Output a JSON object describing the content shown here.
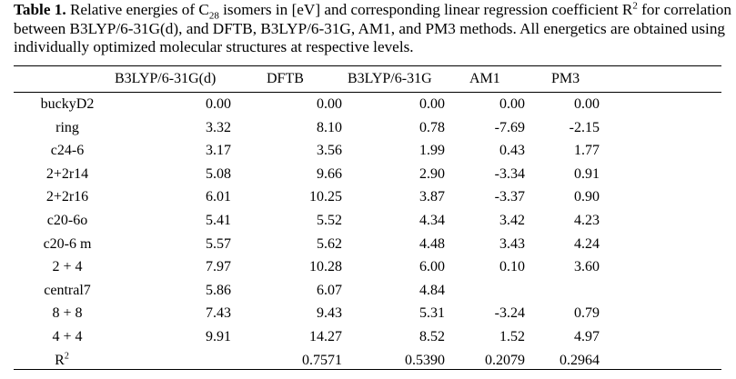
{
  "caption": {
    "label": "Table 1.",
    "text_a": " Relative energies of C",
    "sub": "28",
    "text_b": " isomers in [eV] and corresponding linear regression coefficient R",
    "sup": "2",
    "text_c": " for correlation between B3LYP/6-31G(d), and DFTB, B3LYP/6-31G, AM1, and PM3 methods. All energetics are obtained using individually optimized molecular structures at respective levels."
  },
  "columns": [
    "B3LYP/6-31G(d)",
    "DFTB",
    "B3LYP/6-31G",
    "AM1",
    "PM3"
  ],
  "rows": [
    {
      "name": "buckyD2",
      "values": [
        "0.00",
        "0.00",
        "0.00",
        "0.00",
        "0.00"
      ]
    },
    {
      "name": "ring",
      "values": [
        "3.32",
        "8.10",
        "0.78",
        "-7.69",
        "-2.15"
      ]
    },
    {
      "name": "c24-6",
      "values": [
        "3.17",
        "3.56",
        "1.99",
        "0.43",
        "1.77"
      ]
    },
    {
      "name": "2+2r14",
      "values": [
        "5.08",
        "9.66",
        "2.90",
        "-3.34",
        "0.91"
      ]
    },
    {
      "name": "2+2r16",
      "values": [
        "6.01",
        "10.25",
        "3.87",
        "-3.37",
        "0.90"
      ]
    },
    {
      "name": "c20-6o",
      "values": [
        "5.41",
        "5.52",
        "4.34",
        "3.42",
        "4.23"
      ]
    },
    {
      "name": "c20-6 m",
      "values": [
        "5.57",
        "5.62",
        "4.48",
        "3.43",
        "4.24"
      ]
    },
    {
      "name": "2 + 4",
      "values": [
        "7.97",
        "10.28",
        "6.00",
        "0.10",
        "3.60"
      ]
    },
    {
      "name": "central7",
      "values": [
        "5.86",
        "6.07",
        "4.84",
        "",
        ""
      ]
    },
    {
      "name": "8 + 8",
      "values": [
        "7.43",
        "9.43",
        "5.31",
        "-3.24",
        "0.79"
      ]
    },
    {
      "name": "4 + 4",
      "values": [
        "9.91",
        "14.27",
        "8.52",
        "1.52",
        "4.97"
      ]
    }
  ],
  "r2_row": {
    "name": "R",
    "name_sup": "2",
    "values": [
      "",
      "0.7571",
      "0.5390",
      "0.2079",
      "0.2964"
    ]
  }
}
